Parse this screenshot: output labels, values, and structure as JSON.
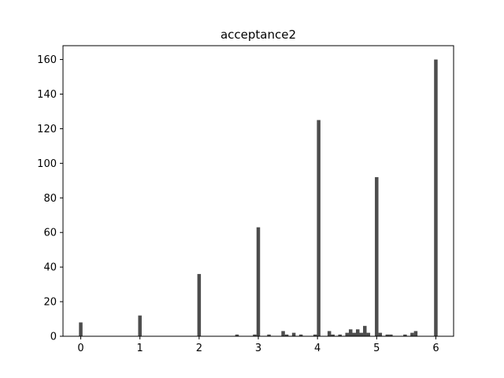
{
  "chart_data": {
    "type": "bar",
    "title": "acceptance2",
    "xlabel": "",
    "ylabel": "",
    "xlim": [
      -0.3,
      6.3
    ],
    "ylim": [
      0,
      168
    ],
    "x_ticks": [
      0,
      1,
      2,
      3,
      4,
      5,
      6
    ],
    "y_ticks": [
      0,
      20,
      40,
      60,
      80,
      100,
      120,
      140,
      160
    ],
    "grid": false,
    "bar_color": "#4d4d4d",
    "bin_width": 0.06,
    "bars": [
      {
        "x": 0.0,
        "value": 8
      },
      {
        "x": 1.0,
        "value": 12
      },
      {
        "x": 2.0,
        "value": 36
      },
      {
        "x": 2.64,
        "value": 1
      },
      {
        "x": 2.94,
        "value": 1
      },
      {
        "x": 3.0,
        "value": 63
      },
      {
        "x": 3.18,
        "value": 1
      },
      {
        "x": 3.42,
        "value": 3
      },
      {
        "x": 3.48,
        "value": 1
      },
      {
        "x": 3.6,
        "value": 2
      },
      {
        "x": 3.72,
        "value": 1
      },
      {
        "x": 3.96,
        "value": 1
      },
      {
        "x": 4.02,
        "value": 125
      },
      {
        "x": 4.2,
        "value": 3
      },
      {
        "x": 4.26,
        "value": 1
      },
      {
        "x": 4.38,
        "value": 1
      },
      {
        "x": 4.5,
        "value": 2
      },
      {
        "x": 4.56,
        "value": 4
      },
      {
        "x": 4.62,
        "value": 2
      },
      {
        "x": 4.68,
        "value": 4
      },
      {
        "x": 4.74,
        "value": 2
      },
      {
        "x": 4.8,
        "value": 6
      },
      {
        "x": 4.86,
        "value": 2
      },
      {
        "x": 5.0,
        "value": 92
      },
      {
        "x": 5.06,
        "value": 2
      },
      {
        "x": 5.18,
        "value": 1
      },
      {
        "x": 5.24,
        "value": 1
      },
      {
        "x": 5.48,
        "value": 1
      },
      {
        "x": 5.6,
        "value": 2
      },
      {
        "x": 5.66,
        "value": 3
      },
      {
        "x": 6.0,
        "value": 160
      }
    ]
  }
}
